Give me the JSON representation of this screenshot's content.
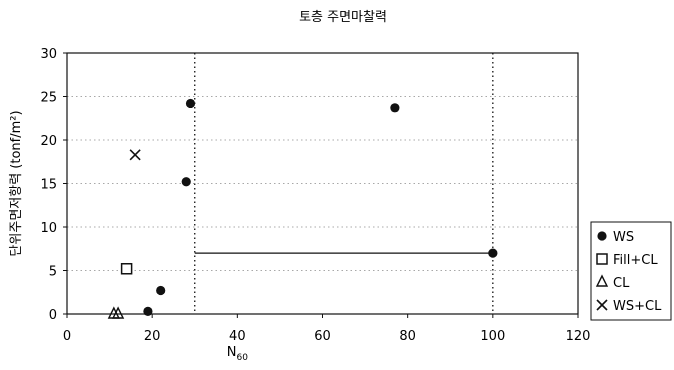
{
  "chart_data": {
    "type": "scatter",
    "title": "토층 주면마찰력",
    "xlabel_main": "N",
    "xlabel_sub": "60",
    "ylabel": "단위주면저항력 (tonf/m²)",
    "xlim": [
      0,
      120
    ],
    "ylim": [
      0,
      30
    ],
    "xticks": [
      0,
      20,
      40,
      60,
      80,
      100,
      120
    ],
    "yticks": [
      0,
      5,
      10,
      15,
      20,
      25,
      30
    ],
    "grid": "horizontal dotted",
    "legend_position": "right",
    "series": [
      {
        "name": "WS",
        "marker": "filled-circle",
        "points": [
          [
            19,
            0.3
          ],
          [
            22,
            2.7
          ],
          [
            28,
            15.2
          ],
          [
            29,
            24.2
          ],
          [
            77,
            23.7
          ],
          [
            100,
            7.0
          ]
        ]
      },
      {
        "name": "Fill+CL",
        "marker": "open-square",
        "points": [
          [
            14,
            5.2
          ]
        ]
      },
      {
        "name": "CL",
        "marker": "open-triangle",
        "points": [
          [
            11,
            0
          ],
          [
            12,
            0
          ]
        ]
      },
      {
        "name": "WS+CL",
        "marker": "x",
        "points": [
          [
            16,
            18.3
          ]
        ]
      }
    ],
    "reference_lines": [
      {
        "kind": "vertical-dotted",
        "x": 30
      },
      {
        "kind": "vertical-dotted",
        "x": 100
      },
      {
        "kind": "horizontal-solid",
        "y": 7,
        "x_from": 30,
        "x_to": 100
      }
    ]
  }
}
